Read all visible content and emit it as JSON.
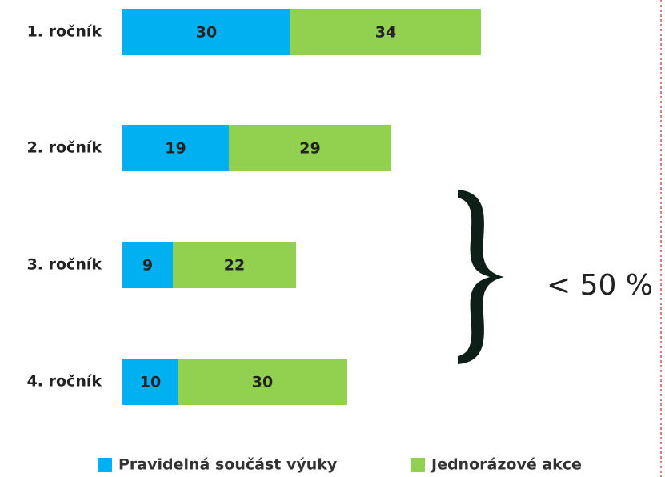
{
  "chart_data": {
    "type": "bar",
    "orientation": "horizontal",
    "stacked": true,
    "categories": [
      "1. ročník",
      "2. ročník",
      "3. ročník",
      "4. ročník"
    ],
    "series": [
      {
        "name": "Pravidelná součást výuky",
        "color": "#00b0f0",
        "values": [
          30,
          19,
          9,
          10
        ]
      },
      {
        "name": "Jednorázové akce",
        "color": "#92d050",
        "values": [
          34,
          29,
          22,
          30
        ]
      }
    ],
    "annotation": "< 50 %",
    "legend": "bottom"
  }
}
